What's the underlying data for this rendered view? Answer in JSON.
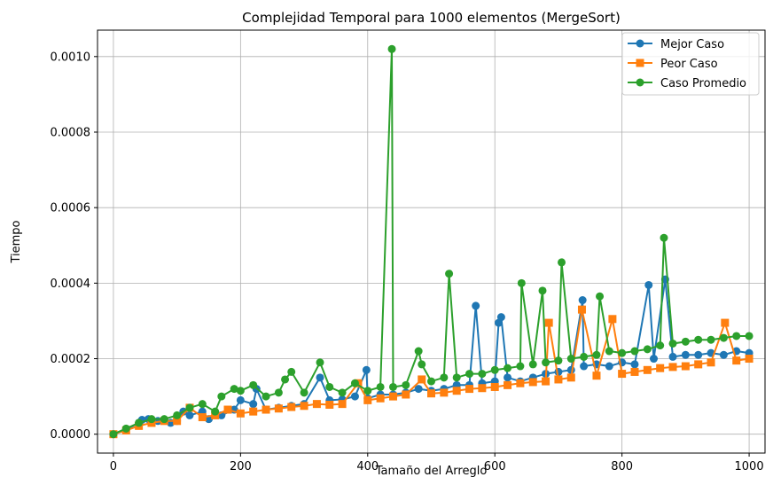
{
  "chart_data": {
    "type": "line",
    "title": "Complejidad Temporal para 1000 elementos (MergeSort)",
    "xlabel": "Tamaño del Arreglo",
    "ylabel": "Tiempo",
    "xlim": [
      -25,
      1025
    ],
    "ylim": [
      -5e-05,
      0.00107
    ],
    "x_ticks": [
      0,
      200,
      400,
      600,
      800,
      1000
    ],
    "x_tick_labels": [
      "0",
      "200",
      "400",
      "600",
      "800",
      "1000"
    ],
    "y_ticks": [
      0.0,
      0.0002,
      0.0004,
      0.0006,
      0.0008,
      0.001
    ],
    "y_tick_labels": [
      "0.0000",
      "0.0002",
      "0.0004",
      "0.0006",
      "0.0008",
      "0.0010"
    ],
    "grid": true,
    "legend_position": "top-right",
    "series": [
      {
        "name": "Mejor Caso",
        "color": "#1f77b4",
        "marker": "circle",
        "x": [
          0,
          20,
          40,
          45,
          55,
          70,
          90,
          100,
          110,
          120,
          140,
          150,
          170,
          190,
          200,
          220,
          225,
          240,
          260,
          280,
          300,
          325,
          340,
          360,
          380,
          398,
          400,
          420,
          440,
          460,
          480,
          500,
          520,
          540,
          560,
          570,
          580,
          600,
          606,
          610,
          620,
          640,
          660,
          680,
          700,
          720,
          738,
          740,
          760,
          780,
          800,
          820,
          842,
          850,
          868,
          880,
          900,
          920,
          940,
          960,
          980,
          1000
        ],
        "y": [
          0.0,
          1.2e-05,
          3e-05,
          3.8e-05,
          4e-05,
          3.5e-05,
          3e-05,
          3.5e-05,
          6e-05,
          5e-05,
          6e-05,
          4e-05,
          5e-05,
          6.5e-05,
          9e-05,
          8e-05,
          0.00012,
          6.5e-05,
          7e-05,
          7.5e-05,
          8e-05,
          0.00015,
          9e-05,
          9.2e-05,
          0.0001,
          0.00017,
          9.5e-05,
          0.000105,
          0.000105,
          0.00011,
          0.00012,
          0.000115,
          0.00012,
          0.00013,
          0.00013,
          0.00034,
          0.000135,
          0.00014,
          0.000295,
          0.00031,
          0.00015,
          0.00014,
          0.00015,
          0.00016,
          0.000165,
          0.00017,
          0.000355,
          0.00018,
          0.000185,
          0.00018,
          0.00019,
          0.000185,
          0.000395,
          0.0002,
          0.00041,
          0.000205,
          0.00021,
          0.00021,
          0.000215,
          0.00021,
          0.00022,
          0.000215
        ]
      },
      {
        "name": "Peor Caso",
        "color": "#ff7f0e",
        "marker": "square",
        "x": [
          0,
          20,
          40,
          60,
          80,
          100,
          120,
          140,
          160,
          180,
          200,
          220,
          240,
          260,
          280,
          300,
          320,
          340,
          360,
          385,
          400,
          420,
          440,
          460,
          485,
          500,
          520,
          540,
          560,
          580,
          600,
          620,
          640,
          660,
          680,
          685,
          700,
          720,
          737,
          760,
          785,
          800,
          820,
          840,
          860,
          880,
          900,
          920,
          940,
          962,
          980,
          1000
        ],
        "y": [
          0.0,
          1e-05,
          2.2e-05,
          3e-05,
          3.5e-05,
          3.5e-05,
          7e-05,
          4.5e-05,
          5e-05,
          6.5e-05,
          5.5e-05,
          6e-05,
          6.5e-05,
          6.8e-05,
          7.2e-05,
          7.5e-05,
          8e-05,
          7.8e-05,
          8e-05,
          0.000135,
          9e-05,
          9.5e-05,
          0.0001,
          0.000105,
          0.000145,
          0.000108,
          0.00011,
          0.000115,
          0.00012,
          0.000122,
          0.000125,
          0.00013,
          0.000135,
          0.000138,
          0.00014,
          0.000295,
          0.000145,
          0.00015,
          0.00033,
          0.000155,
          0.000305,
          0.00016,
          0.000165,
          0.00017,
          0.000175,
          0.000178,
          0.00018,
          0.000185,
          0.00019,
          0.000295,
          0.000195,
          0.0002
        ]
      },
      {
        "name": "Caso Promedio",
        "color": "#2ca02c",
        "marker": "circle",
        "x": [
          0,
          20,
          40,
          60,
          80,
          100,
          120,
          140,
          160,
          170,
          190,
          200,
          220,
          240,
          260,
          270,
          280,
          300,
          325,
          340,
          360,
          380,
          400,
          420,
          438,
          440,
          460,
          480,
          485,
          500,
          520,
          528,
          540,
          560,
          580,
          600,
          620,
          640,
          642,
          660,
          675,
          680,
          700,
          705,
          720,
          740,
          760,
          765,
          780,
          800,
          820,
          840,
          860,
          866,
          880,
          900,
          920,
          940,
          960,
          980,
          1000
        ],
        "y": [
          0.0,
          1.5e-05,
          3e-05,
          4e-05,
          4e-05,
          5e-05,
          7e-05,
          8e-05,
          6e-05,
          0.0001,
          0.00012,
          0.000115,
          0.00013,
          0.0001,
          0.00011,
          0.000145,
          0.000165,
          0.00011,
          0.00019,
          0.000125,
          0.00011,
          0.000135,
          0.000115,
          0.000125,
          0.00102,
          0.000125,
          0.00013,
          0.00022,
          0.000185,
          0.00014,
          0.00015,
          0.000425,
          0.00015,
          0.00016,
          0.00016,
          0.00017,
          0.000175,
          0.00018,
          0.0004,
          0.000185,
          0.00038,
          0.00019,
          0.000195,
          0.000455,
          0.0002,
          0.000205,
          0.00021,
          0.000365,
          0.00022,
          0.000215,
          0.00022,
          0.000225,
          0.000235,
          0.00052,
          0.00024,
          0.000245,
          0.00025,
          0.00025,
          0.000255,
          0.00026,
          0.00026
        ]
      }
    ]
  }
}
